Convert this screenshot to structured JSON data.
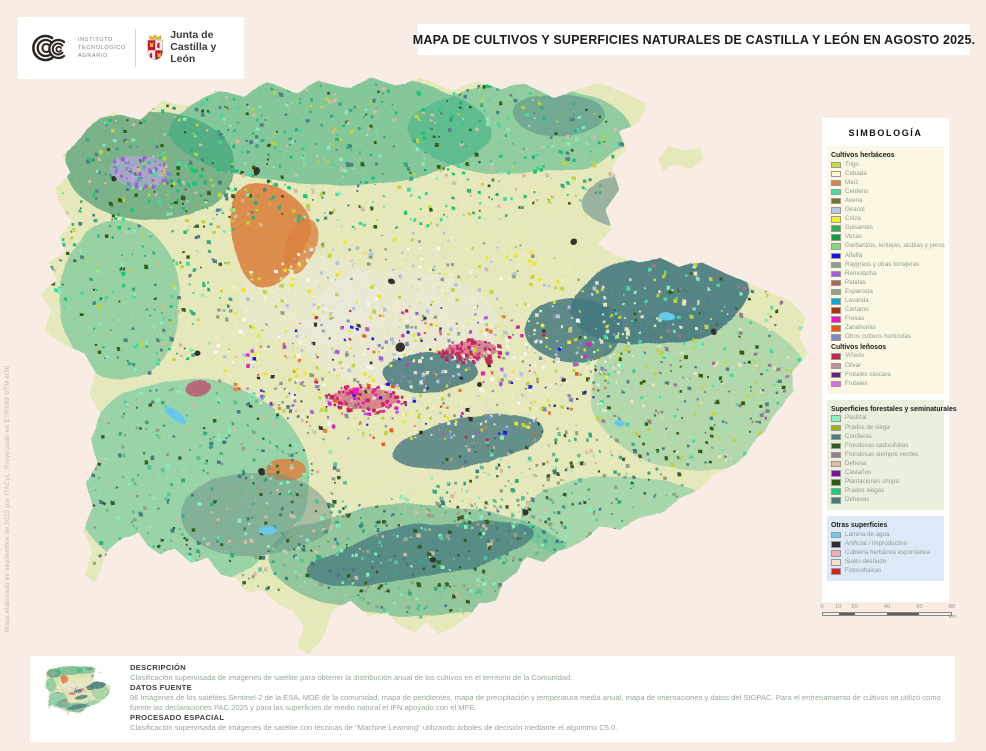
{
  "page": {
    "title": "MAPA DE CULTIVOS Y SUPERFICIES NATURALES DE CASTILLA Y LEÓN EN AGOSTO 2025.",
    "side_note": "Mapa elaborado en septiembre de 2025 por ITACyL.  Proyectado en ETRS89 UTM-H30",
    "background_color": "#f9ece4"
  },
  "logos": {
    "ita": {
      "line1": "INSTITUTO",
      "line2": "TECNOLÓGICO",
      "line3": "AGRARIO"
    },
    "junta": {
      "line1": "Junta de",
      "line2": "Castilla y León"
    }
  },
  "legend": {
    "title": "SIMBOLOGÍA",
    "panels": [
      {
        "bg": "#fbf7e2",
        "sections": [
          {
            "header": "Cultivos herbáceos",
            "items": [
              {
                "label": "Trigo",
                "color": "#c9da33"
              },
              {
                "label": "Cebada",
                "color": "#fbf6c6"
              },
              {
                "label": "Maíz",
                "color": "#e2833b"
              },
              {
                "label": "Centeno",
                "color": "#3fe2a0"
              },
              {
                "label": "Avena",
                "color": "#77741b"
              },
              {
                "label": "Girasol",
                "color": "#b9c7e9"
              },
              {
                "label": "Colza",
                "color": "#f7ee26"
              },
              {
                "label": "Guisantes",
                "color": "#29b34c"
              },
              {
                "label": "Vezas",
                "color": "#119e41"
              },
              {
                "label": "Garbanzos, lentejas, alubias y yeros",
                "color": "#7cdd78"
              },
              {
                "label": "Alfalfa",
                "color": "#1414fa"
              },
              {
                "label": "Raygrass y otras forrajeras",
                "color": "#8e9d8e"
              },
              {
                "label": "Remolacha",
                "color": "#a957e2"
              },
              {
                "label": "Patatas",
                "color": "#ac6a4c"
              },
              {
                "label": "Esparceta",
                "color": "#94a287"
              },
              {
                "label": "Lavanda",
                "color": "#0ba7d0"
              },
              {
                "label": "Cártamo",
                "color": "#ac3204"
              },
              {
                "label": "Fresas",
                "color": "#f214c6"
              },
              {
                "label": "Zanahorias",
                "color": "#f65510"
              },
              {
                "label": "Otros cultivos hortícolas",
                "color": "#8186ca"
              }
            ]
          },
          {
            "header": "Cultivos leñosos",
            "items": [
              {
                "label": "Viñedo",
                "color": "#cb2058"
              },
              {
                "label": "Olivar",
                "color": "#bd9193"
              },
              {
                "label": "Frutales cáscara",
                "color": "#6f2279"
              },
              {
                "label": "Frutales",
                "color": "#e26ae0"
              }
            ]
          }
        ]
      },
      {
        "bg": "#e9f1de",
        "sections": [
          {
            "header": "Superficies forestales y seminaturales",
            "items": [
              {
                "label": "Pastizal",
                "color": "#85f6c1"
              },
              {
                "label": "Prados de siega",
                "color": "#a8b40c"
              },
              {
                "label": "Coníferas",
                "color": "#4a7e83"
              },
              {
                "label": "Frondosas caducifolias",
                "color": "#355a1c"
              },
              {
                "label": "Frondosas siempre verdes",
                "color": "#97798b"
              },
              {
                "label": "Dehesa",
                "color": "#dcbfa5"
              },
              {
                "label": "Castaños",
                "color": "#7f0da0"
              },
              {
                "label": "Plantaciones chopo",
                "color": "#2e5c09"
              },
              {
                "label": "Prados siegas",
                "color": "#10cc72"
              },
              {
                "label": "Dehesas",
                "color": "#42797f"
              }
            ]
          }
        ]
      },
      {
        "bg": "#dde9f6",
        "sections": [
          {
            "header": "Otras superficies",
            "items": [
              {
                "label": "Lámina de agua",
                "color": "#66cef3"
              },
              {
                "label": "Artificial / Improductivo",
                "color": "#2f2c2a"
              },
              {
                "label": "Cubierta herbácea espontánea",
                "color": "#f6abb5"
              },
              {
                "label": "Suelo desnudo",
                "color": "#fbdfd2"
              },
              {
                "label": "Fotovoltaicas",
                "color": "#e31b1d"
              }
            ]
          }
        ]
      }
    ]
  },
  "scalebar": {
    "ticks": [
      "0",
      "10",
      "20",
      "40",
      "60",
      "80"
    ],
    "unit": "km"
  },
  "info": {
    "description_title": "DESCRIPCIÓN",
    "description": "Clasificación supervisada de imágenes de satélite para obtener la distribución anual de los cultivos en el territorio de la Comunidad.",
    "datos_title": "DATOS FUENTE",
    "datos": "96 Imágenes de los satélites Sentinel-2 de la ESA, MDE de la comunidad, mapa de pendientes, mapa de precipitación y temperatura media anual, mapa de orientaciones y datos del SIGPAC.  Para el entrenamiento de cultivos se utilizó como fuente las declaraciones PAC 2025 y para las superficies de medio natural el IFN apoyado con el MFE.",
    "procesado_title": "PROCESADO ESPACIAL",
    "procesado": "Clasificación supervisada de imágenes de satélite con técnicas de \"Machine Learning\" utilizando árboles de decisión mediante el algoritmo C5.0."
  }
}
